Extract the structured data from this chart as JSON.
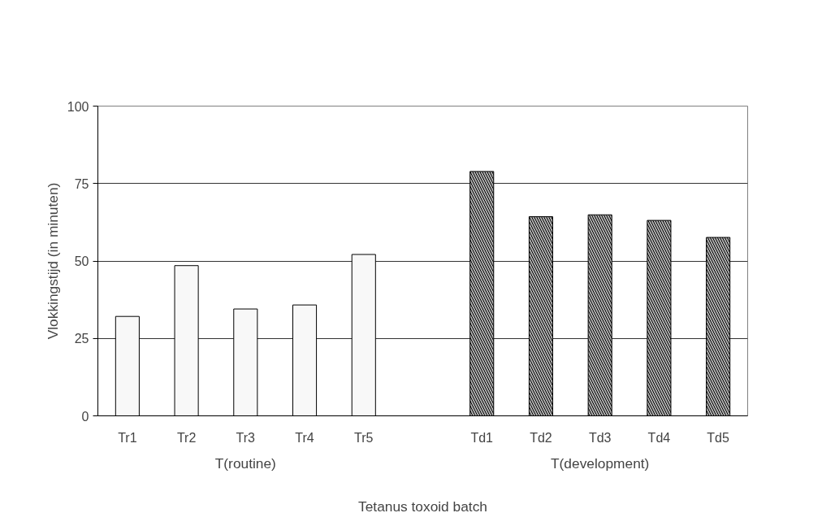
{
  "chart_data": {
    "type": "bar",
    "xlabel": "Tetanus toxoid batch",
    "ylabel": "Vlokkingstijd (in minuten)",
    "categories": [
      "Tr1",
      "Tr2",
      "Tr3",
      "Tr4",
      "Tr5",
      null,
      "Td1",
      "Td2",
      "Td3",
      "Td4",
      "Td5"
    ],
    "series": [
      {
        "color": "#f8f8f8",
        "values": [
          32.1,
          48.5,
          34.5,
          35.8,
          52.1,
          null,
          null,
          null,
          null,
          null,
          null
        ]
      },
      {
        "color": "#b0b0b0",
        "values": [
          null,
          null,
          null,
          null,
          null,
          null,
          78.9,
          64.3,
          64.9,
          63.1,
          57.6
        ]
      }
    ],
    "annotations": [
      "T(routine)",
      "T(development)"
    ],
    "ylim": [
      0,
      100
    ],
    "yticks": [
      0,
      25,
      50,
      75,
      100
    ],
    "grid": "y"
  }
}
